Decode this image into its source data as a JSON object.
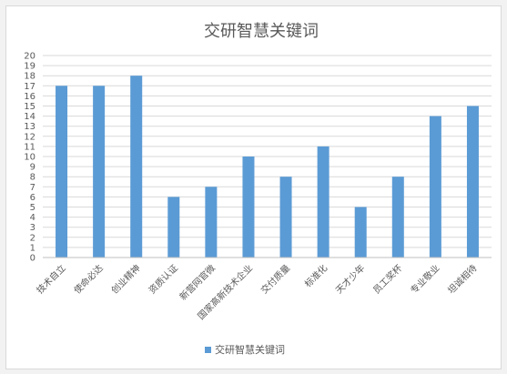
{
  "chart_data": {
    "type": "bar",
    "title": "交研智慧关键词",
    "categories": [
      "技术自立",
      "使命必达",
      "创业精神",
      "资质认证",
      "新营网官微",
      "国家高新技术企业",
      "交付质量",
      "标准化",
      "天才少年",
      "员工奖杯",
      "专业敬业",
      "坦诚相待"
    ],
    "series": [
      {
        "name": "交研智慧关键词",
        "values": [
          17,
          17,
          18,
          6,
          7,
          10,
          8,
          11,
          5,
          8,
          14,
          15
        ]
      }
    ],
    "ylim": [
      0,
      20
    ],
    "ytick_step": 1,
    "grid": true,
    "legend": "bottom",
    "colors": {
      "bar": "#5b9bd5",
      "grid": "#d9d9d9",
      "axis": "#bfbfbf",
      "text": "#595959"
    }
  }
}
